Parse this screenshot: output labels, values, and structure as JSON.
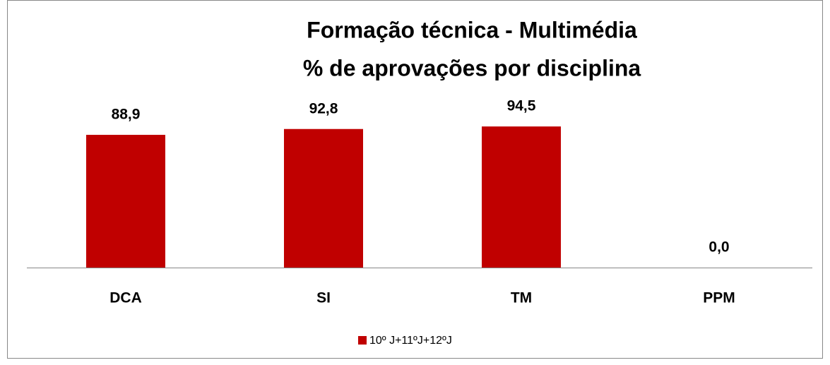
{
  "chart_data": {
    "type": "bar",
    "title": "Formação técnica - Multimédia",
    "subtitle": "% de aprovações por disciplina",
    "categories": [
      "DCA",
      "SI",
      "TM",
      "PPM"
    ],
    "series": [
      {
        "name": "10º J+11ºJ+12ºJ",
        "color": "#c00000",
        "values": [
          88.9,
          92.8,
          94.5,
          0.0
        ],
        "value_labels": [
          "88,9",
          "92,8",
          "94,5",
          "0,0"
        ]
      }
    ],
    "ylim": [
      0,
      100
    ]
  }
}
